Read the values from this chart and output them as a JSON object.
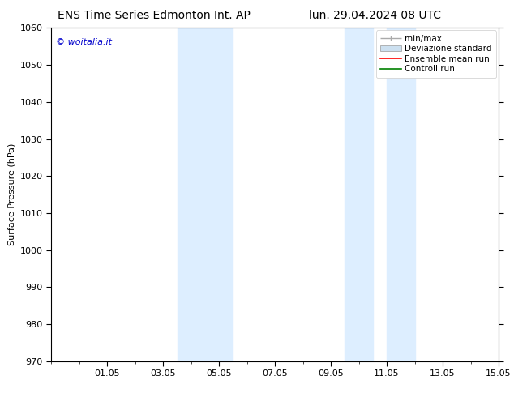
{
  "title_left": "ENS Time Series Edmonton Int. AP",
  "title_right": "lun. 29.04.2024 08 UTC",
  "ylabel": "Surface Pressure (hPa)",
  "ylim": [
    970,
    1060
  ],
  "yticks": [
    970,
    980,
    990,
    1000,
    1010,
    1020,
    1030,
    1040,
    1050,
    1060
  ],
  "xlim": [
    0,
    16
  ],
  "xtick_labels": [
    "01.05",
    "03.05",
    "05.05",
    "07.05",
    "09.05",
    "11.05",
    "13.05",
    "15.05"
  ],
  "xtick_positions": [
    2,
    4,
    6,
    8,
    10,
    12,
    14,
    16
  ],
  "shaded_bands": [
    {
      "x_start": 4.5,
      "x_end": 5.5
    },
    {
      "x_start": 5.5,
      "x_end": 6.5
    },
    {
      "x_start": 10.5,
      "x_end": 11.5
    },
    {
      "x_start": 12.0,
      "x_end": 13.0
    }
  ],
  "shaded_color": "#ddeeff",
  "background_color": "#ffffff",
  "watermark_text": "© woitalia.it",
  "watermark_color": "#0000cc",
  "legend_items": [
    {
      "label": "min/max",
      "color": "#aaaaaa",
      "style": "hline_caps"
    },
    {
      "label": "Deviazione standard",
      "color": "#cce0f0",
      "style": "filled_box"
    },
    {
      "label": "Ensemble mean run",
      "color": "#ff0000",
      "style": "line"
    },
    {
      "label": "Controll run",
      "color": "#008000",
      "style": "line"
    }
  ],
  "title_fontsize": 10,
  "tick_fontsize": 8,
  "ylabel_fontsize": 8,
  "legend_fontsize": 7.5,
  "watermark_fontsize": 8
}
